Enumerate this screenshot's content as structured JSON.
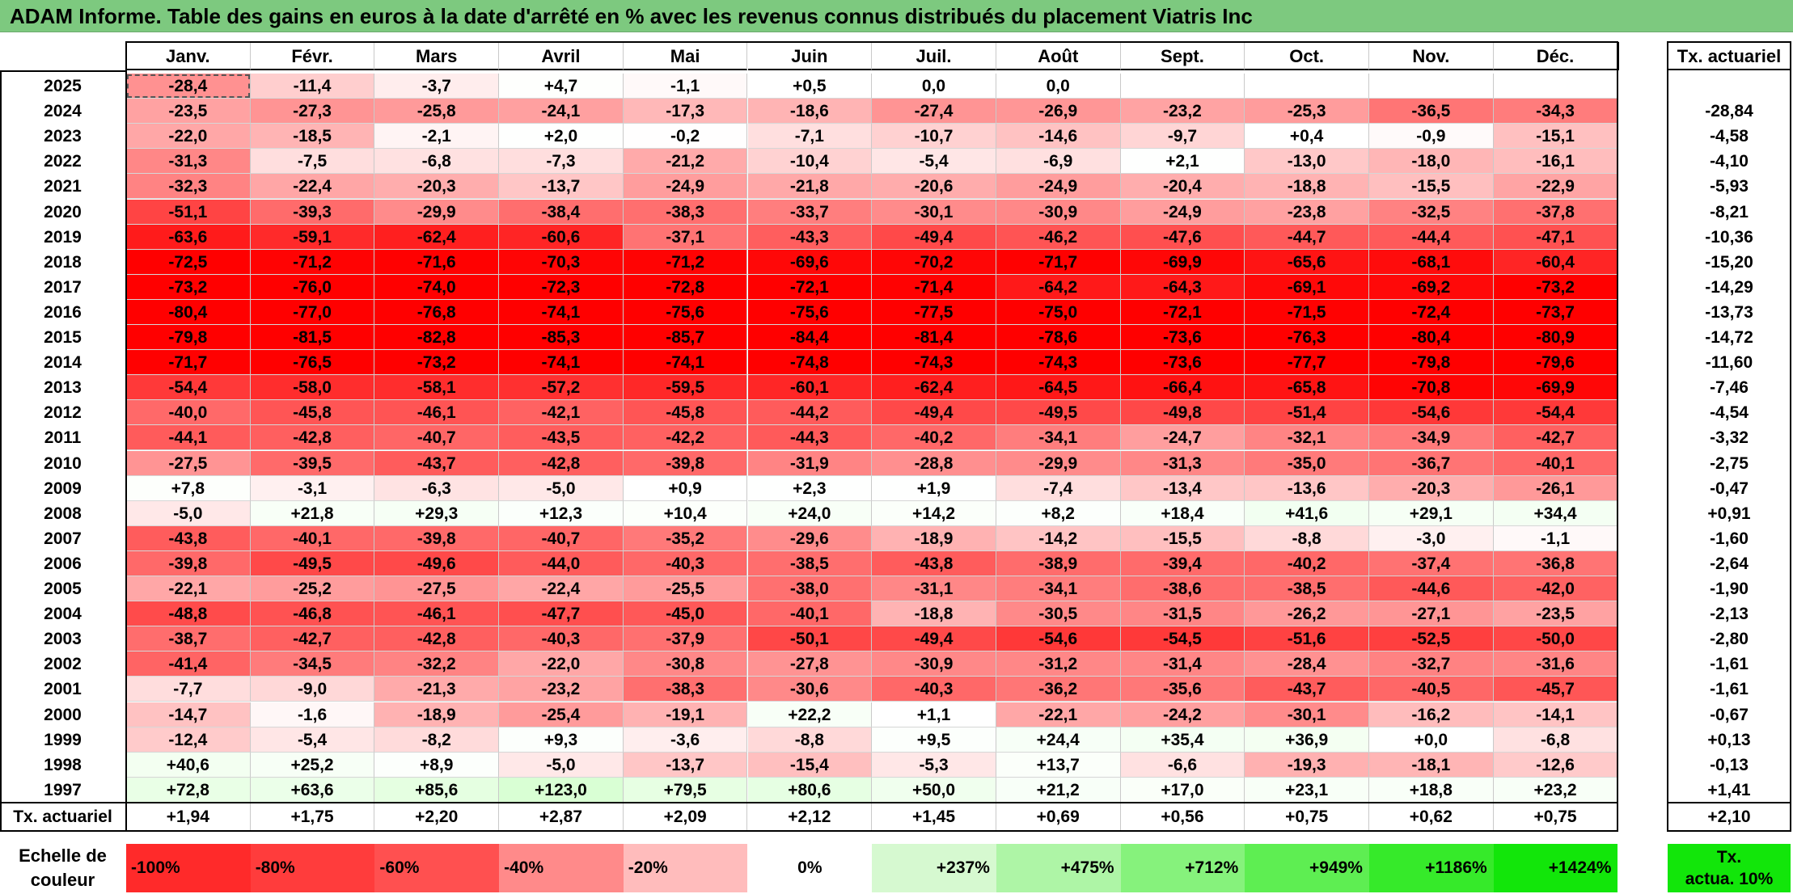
{
  "title": "ADAM Informe. Table des gains en euros à la date d'arrêté en % avec les revenus connus distribués du placement Viatris Inc",
  "months": [
    "Janv.",
    "Févr.",
    "Mars",
    "Avril",
    "Mai",
    "Juin",
    "Juil.",
    "Août",
    "Sept.",
    "Oct.",
    "Nov.",
    "Déc."
  ],
  "rate_header": "Tx. actuariel",
  "rows": [
    {
      "year": "2025",
      "values": [
        "-28,4",
        "-11,4",
        "-3,7",
        "+4,7",
        "-1,1",
        "+0,5",
        "0,0",
        "0,0",
        "",
        "",
        "",
        ""
      ],
      "rate": ""
    },
    {
      "year": "2024",
      "values": [
        "-23,5",
        "-27,3",
        "-25,8",
        "-24,1",
        "-17,3",
        "-18,6",
        "-27,4",
        "-26,9",
        "-23,2",
        "-25,3",
        "-36,5",
        "-34,3"
      ],
      "rate": "-28,84"
    },
    {
      "year": "2023",
      "values": [
        "-22,0",
        "-18,5",
        "-2,1",
        "+2,0",
        "-0,2",
        "-7,1",
        "-10,7",
        "-14,6",
        "-9,7",
        "+0,4",
        "-0,9",
        "-15,1"
      ],
      "rate": "-4,58"
    },
    {
      "year": "2022",
      "values": [
        "-31,3",
        "-7,5",
        "-6,8",
        "-7,3",
        "-21,2",
        "-10,4",
        "-5,4",
        "-6,9",
        "+2,1",
        "-13,0",
        "-18,0",
        "-16,1"
      ],
      "rate": "-4,10"
    },
    {
      "year": "2021",
      "values": [
        "-32,3",
        "-22,4",
        "-20,3",
        "-13,7",
        "-24,9",
        "-21,8",
        "-20,6",
        "-24,9",
        "-20,4",
        "-18,8",
        "-15,5",
        "-22,9"
      ],
      "rate": "-5,93"
    },
    {
      "year": "2020",
      "values": [
        "-51,1",
        "-39,3",
        "-29,9",
        "-38,4",
        "-38,3",
        "-33,7",
        "-30,1",
        "-30,9",
        "-24,9",
        "-23,8",
        "-32,5",
        "-37,8"
      ],
      "rate": "-8,21"
    },
    {
      "year": "2019",
      "values": [
        "-63,6",
        "-59,1",
        "-62,4",
        "-60,6",
        "-37,1",
        "-43,3",
        "-49,4",
        "-46,2",
        "-47,6",
        "-44,7",
        "-44,4",
        "-47,1"
      ],
      "rate": "-10,36"
    },
    {
      "year": "2018",
      "values": [
        "-72,5",
        "-71,2",
        "-71,6",
        "-70,3",
        "-71,2",
        "-69,6",
        "-70,2",
        "-71,7",
        "-69,9",
        "-65,6",
        "-68,1",
        "-60,4"
      ],
      "rate": "-15,20"
    },
    {
      "year": "2017",
      "values": [
        "-73,2",
        "-76,0",
        "-74,0",
        "-72,3",
        "-72,8",
        "-72,1",
        "-71,4",
        "-64,2",
        "-64,3",
        "-69,1",
        "-69,2",
        "-73,2"
      ],
      "rate": "-14,29"
    },
    {
      "year": "2016",
      "values": [
        "-80,4",
        "-77,0",
        "-76,8",
        "-74,1",
        "-75,6",
        "-75,6",
        "-77,5",
        "-75,0",
        "-72,1",
        "-71,5",
        "-72,4",
        "-73,7"
      ],
      "rate": "-13,73"
    },
    {
      "year": "2015",
      "values": [
        "-79,8",
        "-81,5",
        "-82,8",
        "-85,3",
        "-85,7",
        "-84,4",
        "-81,4",
        "-78,6",
        "-73,6",
        "-76,3",
        "-80,4",
        "-80,9"
      ],
      "rate": "-14,72"
    },
    {
      "year": "2014",
      "values": [
        "-71,7",
        "-76,5",
        "-73,2",
        "-74,1",
        "-74,1",
        "-74,8",
        "-74,3",
        "-74,3",
        "-73,6",
        "-77,7",
        "-79,8",
        "-79,6"
      ],
      "rate": "-11,60"
    },
    {
      "year": "2013",
      "values": [
        "-54,4",
        "-58,0",
        "-58,1",
        "-57,2",
        "-59,5",
        "-60,1",
        "-62,4",
        "-64,5",
        "-66,4",
        "-65,8",
        "-70,8",
        "-69,9"
      ],
      "rate": "-7,46"
    },
    {
      "year": "2012",
      "values": [
        "-40,0",
        "-45,8",
        "-46,1",
        "-42,1",
        "-45,8",
        "-44,2",
        "-49,4",
        "-49,5",
        "-49,8",
        "-51,4",
        "-54,6",
        "-54,4"
      ],
      "rate": "-4,54"
    },
    {
      "year": "2011",
      "values": [
        "-44,1",
        "-42,8",
        "-40,7",
        "-43,5",
        "-42,2",
        "-44,3",
        "-40,2",
        "-34,1",
        "-24,7",
        "-32,1",
        "-34,9",
        "-42,7"
      ],
      "rate": "-3,32"
    },
    {
      "year": "2010",
      "values": [
        "-27,5",
        "-39,5",
        "-43,7",
        "-42,8",
        "-39,8",
        "-31,9",
        "-28,8",
        "-29,9",
        "-31,3",
        "-35,0",
        "-36,7",
        "-40,1"
      ],
      "rate": "-2,75"
    },
    {
      "year": "2009",
      "values": [
        "+7,8",
        "-3,1",
        "-6,3",
        "-5,0",
        "+0,9",
        "+2,3",
        "+1,9",
        "-7,4",
        "-13,4",
        "-13,6",
        "-20,3",
        "-26,1"
      ],
      "rate": "-0,47"
    },
    {
      "year": "2008",
      "values": [
        "-5,0",
        "+21,8",
        "+29,3",
        "+12,3",
        "+10,4",
        "+24,0",
        "+14,2",
        "+8,2",
        "+18,4",
        "+41,6",
        "+29,1",
        "+34,4"
      ],
      "rate": "+0,91"
    },
    {
      "year": "2007",
      "values": [
        "-43,8",
        "-40,1",
        "-39,8",
        "-40,7",
        "-35,2",
        "-29,6",
        "-18,9",
        "-14,2",
        "-15,5",
        "-8,8",
        "-3,0",
        "-1,1"
      ],
      "rate": "-1,60"
    },
    {
      "year": "2006",
      "values": [
        "-39,8",
        "-49,5",
        "-49,6",
        "-44,0",
        "-40,3",
        "-38,5",
        "-43,8",
        "-38,9",
        "-39,4",
        "-40,2",
        "-37,4",
        "-36,8"
      ],
      "rate": "-2,64"
    },
    {
      "year": "2005",
      "values": [
        "-22,1",
        "-25,2",
        "-27,5",
        "-22,4",
        "-25,5",
        "-38,0",
        "-31,1",
        "-34,1",
        "-38,6",
        "-38,5",
        "-44,6",
        "-42,0"
      ],
      "rate": "-1,90"
    },
    {
      "year": "2004",
      "values": [
        "-48,8",
        "-46,8",
        "-46,1",
        "-47,7",
        "-45,0",
        "-40,1",
        "-18,8",
        "-30,5",
        "-31,5",
        "-26,2",
        "-27,1",
        "-23,5"
      ],
      "rate": "-2,13"
    },
    {
      "year": "2003",
      "values": [
        "-38,7",
        "-42,7",
        "-42,8",
        "-40,3",
        "-37,9",
        "-50,1",
        "-49,4",
        "-54,6",
        "-54,5",
        "-51,6",
        "-52,5",
        "-50,0"
      ],
      "rate": "-2,80"
    },
    {
      "year": "2002",
      "values": [
        "-41,4",
        "-34,5",
        "-32,2",
        "-22,0",
        "-30,8",
        "-27,8",
        "-30,9",
        "-31,2",
        "-31,4",
        "-28,4",
        "-32,7",
        "-31,6"
      ],
      "rate": "-1,61"
    },
    {
      "year": "2001",
      "values": [
        "-7,7",
        "-9,0",
        "-21,3",
        "-23,2",
        "-38,3",
        "-30,6",
        "-40,3",
        "-36,2",
        "-35,6",
        "-43,7",
        "-40,5",
        "-45,7"
      ],
      "rate": "-1,61"
    },
    {
      "year": "2000",
      "values": [
        "-14,7",
        "-1,6",
        "-18,9",
        "-25,4",
        "-19,1",
        "+22,2",
        "+1,1",
        "-22,1",
        "-24,2",
        "-30,1",
        "-16,2",
        "-14,1"
      ],
      "rate": "-0,67"
    },
    {
      "year": "1999",
      "values": [
        "-12,4",
        "-5,4",
        "-8,2",
        "+9,3",
        "-3,6",
        "-8,8",
        "+9,5",
        "+24,4",
        "+35,4",
        "+36,9",
        "+0,0",
        "-6,8"
      ],
      "rate": "+0,13"
    },
    {
      "year": "1998",
      "values": [
        "+40,6",
        "+25,2",
        "+8,9",
        "-5,0",
        "-13,7",
        "-15,4",
        "-5,3",
        "+13,7",
        "-6,6",
        "-19,3",
        "-18,1",
        "-12,6"
      ],
      "rate": "-0,13"
    },
    {
      "year": "1997",
      "values": [
        "+72,8",
        "+63,6",
        "+85,6",
        "+123,0",
        "+79,5",
        "+80,6",
        "+50,0",
        "+21,2",
        "+17,0",
        "+23,1",
        "+18,8",
        "+23,2"
      ],
      "rate": "+1,41"
    }
  ],
  "totals": {
    "label": "Tx. actuariel",
    "values": [
      "+1,94",
      "+1,75",
      "+2,20",
      "+2,87",
      "+2,09",
      "+2,12",
      "+1,45",
      "+0,69",
      "+0,56",
      "+0,75",
      "+0,62",
      "+0,75"
    ],
    "rate": "+2,10"
  },
  "legend": {
    "label_line1": "Echelle de",
    "label_line2": "couleur",
    "items": [
      {
        "text": "-100%",
        "color": "#ff2a2a",
        "align": "left"
      },
      {
        "text": "-80%",
        "color": "#ff3c3c",
        "align": "left"
      },
      {
        "text": "-60%",
        "color": "#ff5050",
        "align": "left"
      },
      {
        "text": "-40%",
        "color": "#ff8a8a",
        "align": "left"
      },
      {
        "text": "-20%",
        "color": "#ffbcbc",
        "align": "left"
      },
      {
        "text": "0%",
        "color": "#ffffff",
        "align": "center"
      },
      {
        "text": "+237%",
        "color": "#d6f9d0",
        "align": "right"
      },
      {
        "text": "+475%",
        "color": "#aef5a6",
        "align": "right"
      },
      {
        "text": "+712%",
        "color": "#86f27c",
        "align": "right"
      },
      {
        "text": "+949%",
        "color": "#5eee52",
        "align": "right"
      },
      {
        "text": "+1186%",
        "color": "#36ea2a",
        "align": "right"
      },
      {
        "text": "+1424%",
        "color": "#12e60a",
        "align": "right"
      }
    ],
    "rate_line1": "Tx.",
    "rate_line2": "actua. 10%",
    "rate_color": "#12e60a"
  },
  "colors": {
    "title_bar": "#7dc97f",
    "negative_max": "#ff0000",
    "positive_max": "#12e60a"
  }
}
